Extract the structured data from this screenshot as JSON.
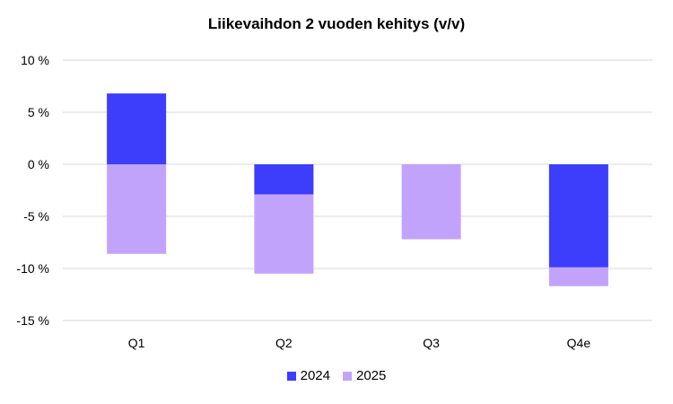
{
  "chart_data": {
    "type": "bar",
    "stacked": true,
    "title": "Liikevaihdon 2 vuoden kehitys (v/v)",
    "categories": [
      "Q1",
      "Q2",
      "Q3",
      "Q4e"
    ],
    "series": [
      {
        "name": "2024",
        "color": "#3d3dfc",
        "values": [
          6.8,
          -2.9,
          0,
          -9.9
        ]
      },
      {
        "name": "2025",
        "color": "#c2a3fc",
        "values": [
          -8.6,
          -7.6,
          -7.2,
          -1.8
        ]
      }
    ],
    "ylim": [
      -15,
      10
    ],
    "yticks": [
      10,
      5,
      0,
      -5,
      -10,
      -15
    ],
    "ytick_labels": [
      "10 %",
      "5 %",
      "0 %",
      "-5 %",
      "-10 %",
      "-15 %"
    ],
    "grid": true,
    "legend": "bottom"
  }
}
